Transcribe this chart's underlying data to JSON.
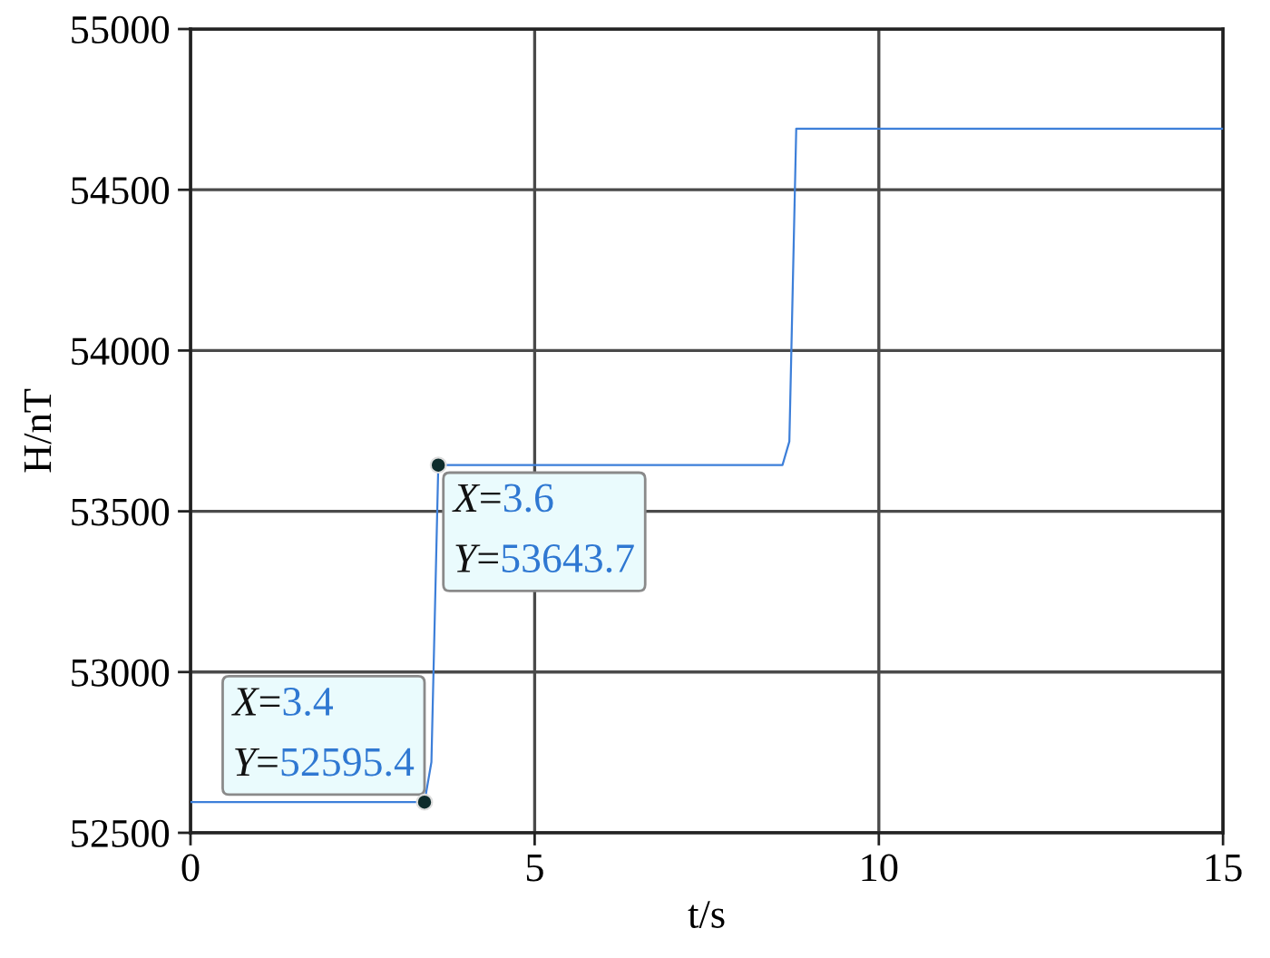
{
  "chart_data": {
    "type": "line",
    "xlabel": "t/s",
    "ylabel": "H/nT",
    "x": [
      0,
      3.4,
      3.5,
      3.6,
      8.6,
      8.7,
      8.8,
      15
    ],
    "series": [
      {
        "color": "#3d7fd9",
        "values": [
          52595.4,
          52595.4,
          52720,
          53643.7,
          53643.7,
          53717,
          54690,
          54690
        ]
      }
    ],
    "xlim": [
      0,
      15
    ],
    "xticks": [
      0,
      5,
      10,
      15
    ],
    "ylim": [
      52500,
      55000
    ],
    "yticks": [
      52500,
      53000,
      53500,
      54000,
      54500,
      55000
    ],
    "grid": true,
    "marker": "none",
    "line_style": "solid",
    "annotations": [
      {
        "text": "X=3.4\nY=52595.4",
        "x": 3.4,
        "y": 52595.4
      },
      {
        "text": "X=3.6\nY=53643.7",
        "x": 3.6,
        "y": 53643.7
      }
    ]
  }
}
